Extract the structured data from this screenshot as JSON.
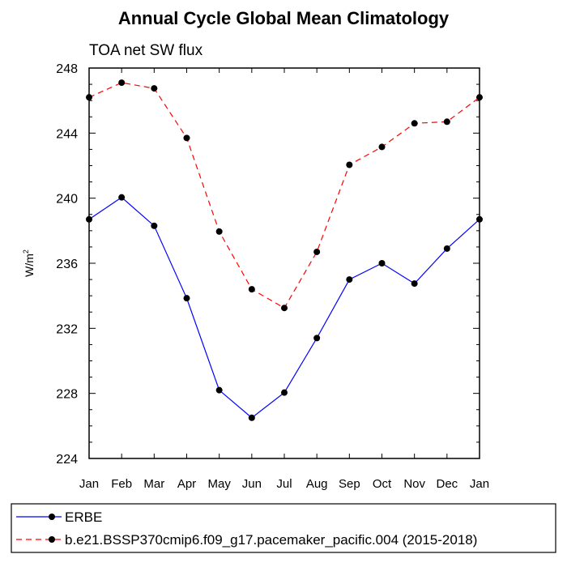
{
  "chart_data": {
    "type": "line",
    "title": "Annual Cycle Global Mean Climatology",
    "subtitle": "TOA net SW flux",
    "xlabel": "",
    "ylabel": "W/m",
    "ylabel_superscript": "2",
    "categories": [
      "Jan",
      "Feb",
      "Mar",
      "Apr",
      "May",
      "Jun",
      "Jul",
      "Aug",
      "Sep",
      "Oct",
      "Nov",
      "Dec",
      "Jan"
    ],
    "ylim": [
      224,
      248
    ],
    "yticks": [
      "224",
      "228",
      "232",
      "236",
      "240",
      "244",
      "248"
    ],
    "grid": false,
    "legend_position": "bottom",
    "series": [
      {
        "name": "ERBE",
        "color": "#0000ff",
        "dash": "solid",
        "values": [
          238.7,
          240.05,
          238.3,
          233.85,
          228.2,
          226.5,
          228.05,
          231.4,
          235.0,
          236.0,
          234.75,
          236.9,
          238.7
        ]
      },
      {
        "name": "b.e21.BSSP370cmip6.f09_g17.pacemaker_pacific.004 (2015-2018)",
        "color": "#ff0000",
        "dash": "dashed",
        "values": [
          246.2,
          247.1,
          246.75,
          243.7,
          237.95,
          234.4,
          233.25,
          236.7,
          242.05,
          243.15,
          244.6,
          244.7,
          246.2
        ]
      }
    ]
  }
}
